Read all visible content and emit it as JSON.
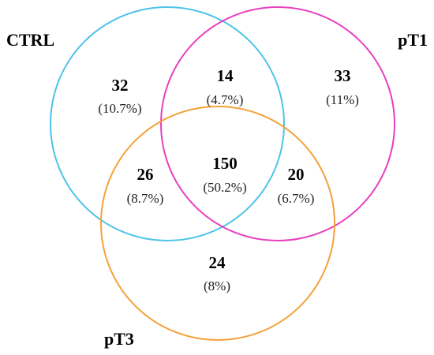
{
  "sets": [
    {
      "id": "ctrl",
      "name": "CTRL",
      "color": "#4dc3e8"
    },
    {
      "id": "pt1",
      "name": "pT1",
      "color": "#e83fbf"
    },
    {
      "id": "pt3",
      "name": "pT3",
      "color": "#f5a13a"
    }
  ],
  "regions": [
    {
      "id": "ctrl-only",
      "sets": [
        "CTRL"
      ],
      "count": "32",
      "percent": "(10.7%)"
    },
    {
      "id": "ctrl-pt1",
      "sets": [
        "CTRL",
        "pT1"
      ],
      "count": "14",
      "percent": "(4.7%)"
    },
    {
      "id": "pt1-only",
      "sets": [
        "pT1"
      ],
      "count": "33",
      "percent": "(11%)"
    },
    {
      "id": "ctrl-pt3",
      "sets": [
        "CTRL",
        "pT3"
      ],
      "count": "26",
      "percent": "(8.7%)"
    },
    {
      "id": "all-three",
      "sets": [
        "CTRL",
        "pT1",
        "pT3"
      ],
      "count": "150",
      "percent": "(50.2%)"
    },
    {
      "id": "pt1-pt3",
      "sets": [
        "pT1",
        "pT3"
      ],
      "count": "20",
      "percent": "(6.7%)"
    },
    {
      "id": "pt3-only",
      "sets": [
        "pT3"
      ],
      "count": "24",
      "percent": "(8%)"
    }
  ]
}
